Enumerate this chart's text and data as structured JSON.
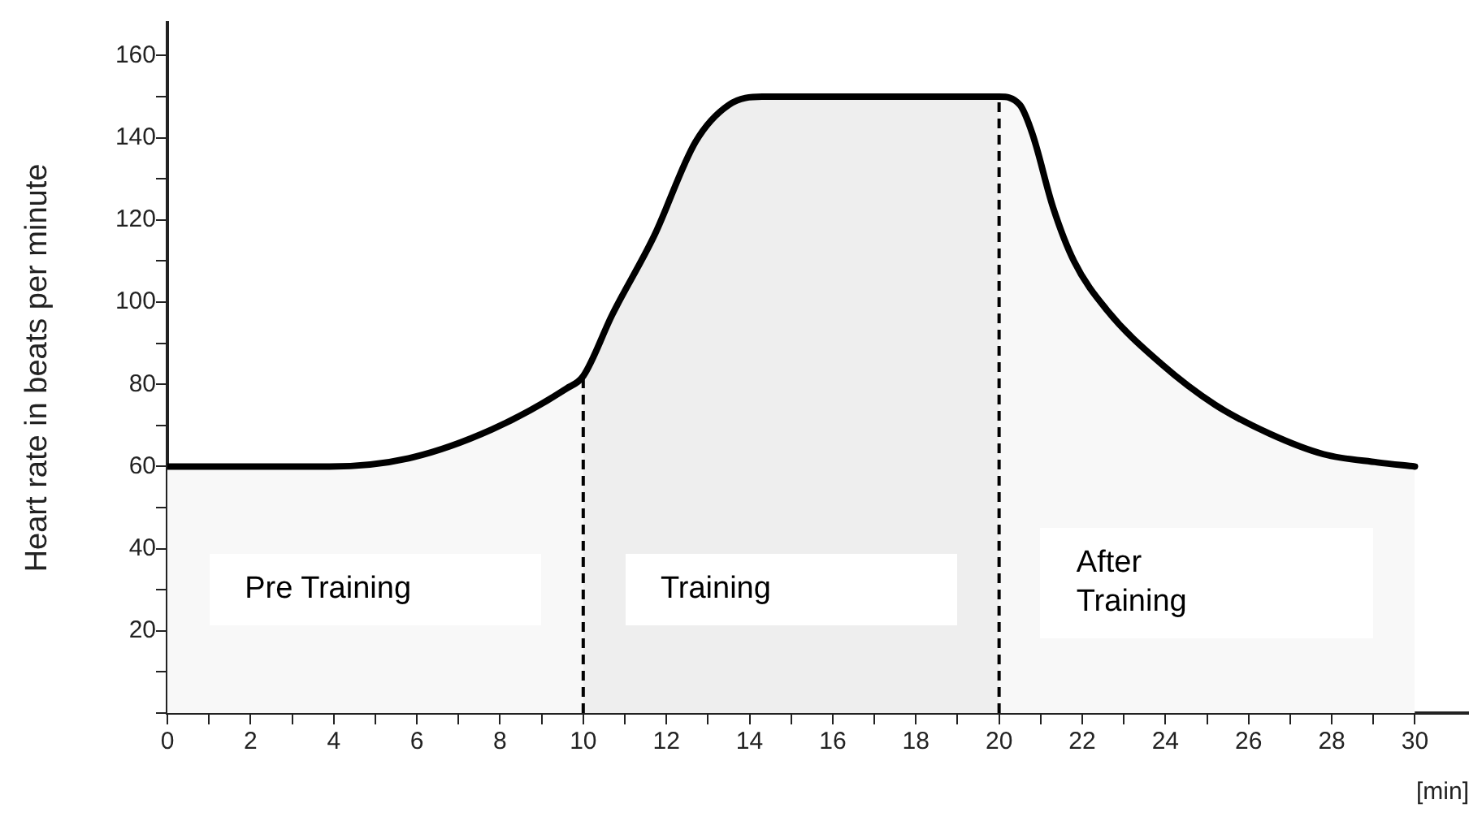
{
  "chart_data": {
    "type": "line",
    "ylabel": "Heart rate in beats per minute",
    "xlabel": "[min]",
    "x": [
      0,
      3.9,
      5.8,
      7.8,
      9.6,
      10,
      10.7,
      11.7,
      12.7,
      13.5,
      14.3,
      20,
      20.5,
      20.8,
      21.3,
      21.8,
      22.6,
      23.9,
      25.2,
      26.5,
      27.8,
      29.1,
      30
    ],
    "series": [
      {
        "color": "#000000",
        "values": [
          60,
          60,
          62,
          69,
          79,
          82,
          97,
          116,
          139,
          148,
          150,
          150,
          148,
          141,
          123,
          110,
          98,
          85,
          75,
          68,
          63,
          61,
          60
        ]
      }
    ],
    "xlim": [
      0,
      31.3
    ],
    "ylim": [
      0,
      168
    ],
    "xticks": [
      0,
      {
        "value": 1,
        "label": null
      },
      2,
      {
        "value": 3,
        "label": null
      },
      4,
      {
        "value": 5,
        "label": null
      },
      6,
      {
        "value": 7,
        "label": null
      },
      8,
      {
        "value": 9,
        "label": null
      },
      10,
      {
        "value": 11,
        "label": null
      },
      12,
      {
        "value": 13,
        "label": null
      },
      14,
      {
        "value": 15,
        "label": null
      },
      16,
      {
        "value": 17,
        "label": null
      },
      18,
      {
        "value": 19,
        "label": null
      },
      20,
      {
        "value": 21,
        "label": null
      },
      22,
      {
        "value": 23,
        "label": null
      },
      24,
      {
        "value": 25,
        "label": null
      },
      26,
      {
        "value": 27,
        "label": null
      },
      28,
      {
        "value": 29,
        "label": null
      },
      30
    ],
    "yticks": [
      {
        "value": 0,
        "label": null
      },
      {
        "value": 10,
        "label": null
      },
      20,
      {
        "value": 30,
        "label": null
      },
      40,
      {
        "value": 50,
        "label": null
      },
      60,
      {
        "value": 70,
        "label": null
      },
      80,
      {
        "value": 90,
        "label": null
      },
      100,
      {
        "value": 110,
        "label": null
      },
      120,
      {
        "value": 130,
        "label": null
      },
      140,
      {
        "value": 150,
        "label": null
      },
      160
    ],
    "bands": [
      {
        "axis": "x",
        "from": 0,
        "to": 10,
        "label": "Pre Training",
        "color": "#f8f8f8"
      },
      {
        "axis": "x",
        "from": 10,
        "to": 20,
        "label": "Training",
        "color": "#eeeeee"
      },
      {
        "axis": "x",
        "from": 20,
        "to": 30,
        "label": "After\nTraining",
        "color": "#f8f8f8"
      }
    ],
    "ref_lines": [
      {
        "axis": "x",
        "value": 10,
        "line_style": "dashed",
        "color": "#000000"
      },
      {
        "axis": "x",
        "value": 20,
        "line_style": "dashed",
        "color": "#000000"
      }
    ],
    "grid": false,
    "legend": false,
    "marker": "none",
    "line_style": "solid"
  }
}
